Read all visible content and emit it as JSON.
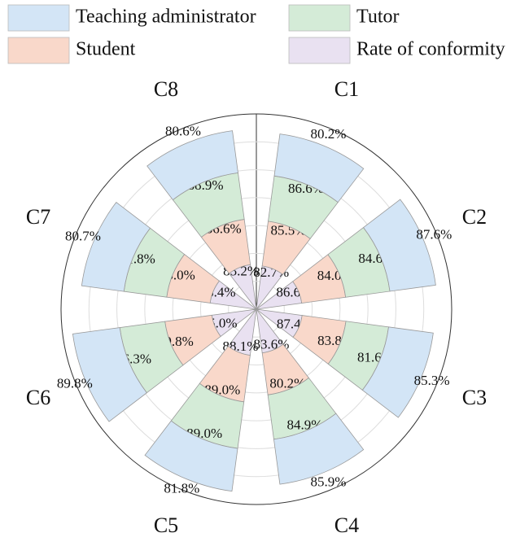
{
  "chart_data": {
    "type": "polar-stacked-bar",
    "categories": [
      "C1",
      "C2",
      "C3",
      "C4",
      "C5",
      "C6",
      "C7",
      "C8"
    ],
    "series": [
      {
        "name": "Rate of conformity",
        "color": "#e9e1f1",
        "values": [
          82.7,
          86.6,
          87.4,
          83.6,
          88.1,
          85.0,
          88.4,
          85.2
        ],
        "value_labels": [
          "82.7%",
          "86.6%",
          "87.4%",
          "83.6%",
          "88.1%",
          "85.0%",
          "88.4%",
          "85.2%"
        ]
      },
      {
        "name": "Student",
        "color": "#f9d8ca",
        "values": [
          85.5,
          84.0,
          83.8,
          80.2,
          89.0,
          89.8,
          83.0,
          86.6
        ],
        "value_labels": [
          "85.5%",
          "84.0%",
          "83.8%",
          "80.2%",
          "89.0%",
          "89.8%",
          "83.0%",
          "86.6%"
        ]
      },
      {
        "name": "Tutor",
        "color": "#d4ebd7",
        "values": [
          86.6,
          84.6,
          81.6,
          84.9,
          89.0,
          86.3,
          81.8,
          88.9
        ],
        "value_labels": [
          "86.6%",
          "84.6%",
          "81.6%",
          "84.9%",
          "89.0%",
          "86.3%",
          "81.8%",
          "88.9%"
        ]
      },
      {
        "name": "Teaching administrator",
        "color": "#d3e5f6",
        "values": [
          80.2,
          87.6,
          85.3,
          85.9,
          81.8,
          89.8,
          80.7,
          80.6
        ],
        "value_labels": [
          "80.2%",
          "87.6%",
          "85.3%",
          "85.9%",
          "81.8%",
          "89.8%",
          "80.7%",
          "80.6%"
        ]
      }
    ],
    "rlim": [
      0,
      370
    ]
  }
}
